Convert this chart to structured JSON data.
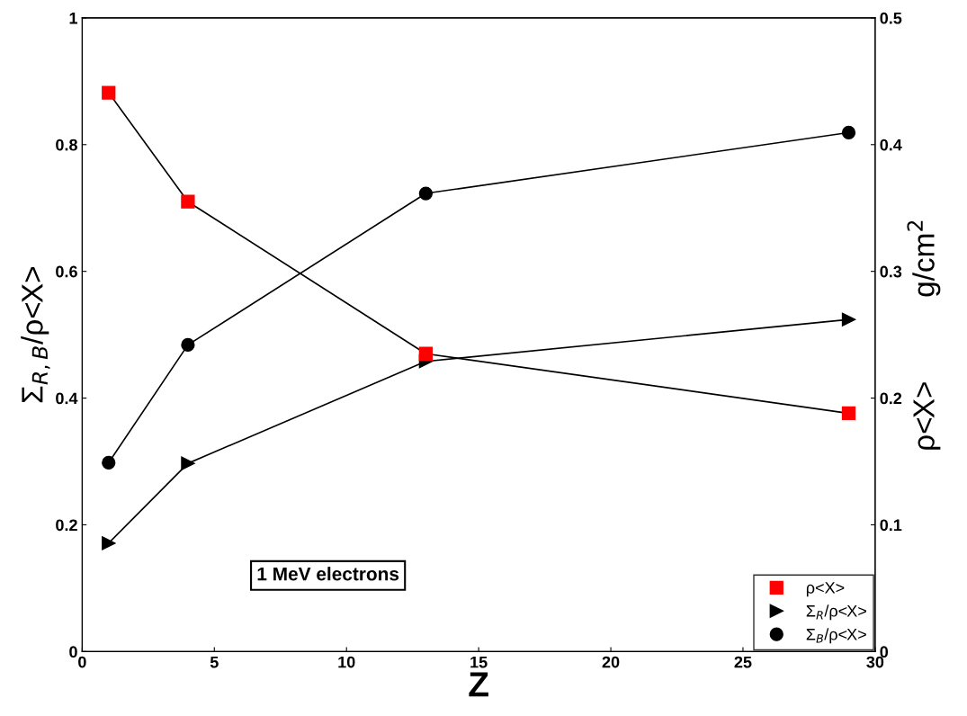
{
  "chart_data": {
    "type": "line",
    "xlabel": "Z",
    "ylabel": "Σ$_{R,B}$/ρ<X>",
    "y2label": "ρ<X>          g/cm$^{2}$",
    "xlim": [
      0,
      30
    ],
    "xticks": [
      0,
      5,
      10,
      15,
      20,
      25,
      30
    ],
    "ylim": [
      0,
      1
    ],
    "yticks": [
      0,
      0.2,
      0.4,
      0.6,
      0.8,
      1
    ],
    "y2lim": [
      0,
      0.5
    ],
    "y2ticks": [
      0,
      0.1,
      0.2,
      0.3,
      0.4,
      0.5
    ],
    "x": [
      1,
      4,
      13,
      29
    ],
    "series": [
      {
        "name": "ρ<X>",
        "color": "#ff0000",
        "marker": "square",
        "axis": "y2",
        "values": [
          0.441,
          0.355,
          0.235,
          0.188
        ]
      },
      {
        "name": "Σ$_{R}$/ρ<X>",
        "color": "#000000",
        "marker": "triangle",
        "values": [
          0.171,
          0.297,
          0.458,
          0.524
        ]
      },
      {
        "name": "Σ$_{B}$/ρ<X>",
        "color": "#000000",
        "marker": "circle",
        "values": [
          0.298,
          0.484,
          0.723,
          0.819
        ]
      }
    ],
    "legend": "bottom right",
    "grid": false,
    "annotations": [
      "1 MeV electrons"
    ]
  }
}
